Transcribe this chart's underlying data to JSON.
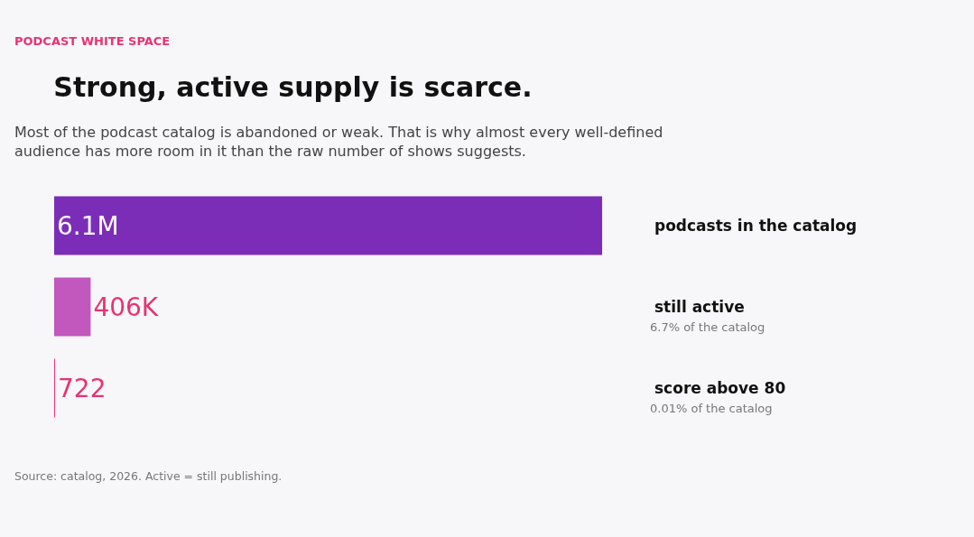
{
  "chart_data": {
    "type": "bar",
    "orientation": "horizontal",
    "title": "Strong, active supply is scarce.",
    "subtitle": "Most of the podcast catalog is abandoned or weak. That is why almost every well-defined audience has more room in it than the raw number of shows suggests.",
    "categories": [
      "podcasts in the catalog",
      "still active",
      "score above 80"
    ],
    "values": [
      6100000,
      406000,
      722
    ],
    "value_labels": [
      "6.1M",
      "406K",
      "722"
    ],
    "colors": [
      "#7b2db8",
      "#c257bd",
      "#e8336f"
    ],
    "annotations": [
      "PODCAST WHITE SPACE",
      "6.7% of the catalog",
      "0.01% of the catalog",
      "Source: catalog, 2026. Active = still publishing."
    ],
    "grid": false,
    "tick_labels": "y"
  }
}
